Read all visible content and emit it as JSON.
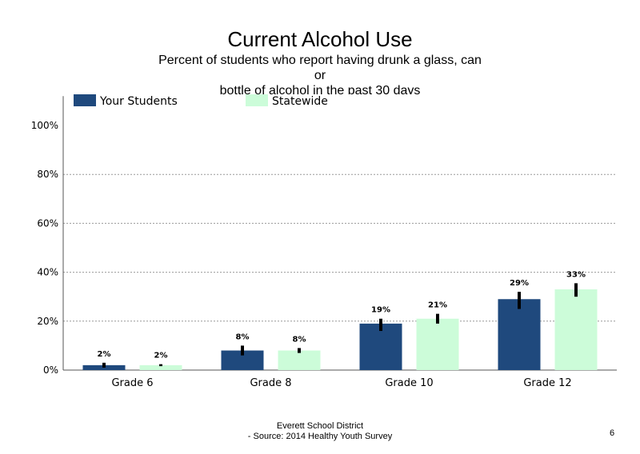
{
  "header": {
    "title": "Current Alcohol Use",
    "subtitle_lines": [
      "Percent of students who report having drunk a glass, can",
      "or",
      "bottle of alcohol in the past 30 days"
    ]
  },
  "footer": {
    "line1": "Everett School District",
    "line2": "- Source: 2014 Healthy Youth Survey",
    "page_number": "6"
  },
  "colors": {
    "your_students": "#1f497d",
    "statewide": "#ccfcd9",
    "error_bar": "#000000",
    "grid": "#999999"
  },
  "chart_data": {
    "type": "bar",
    "title": "Current Alcohol Use",
    "categories": [
      "Grade 6",
      "Grade 8",
      "Grade 10",
      "Grade 12"
    ],
    "series": [
      {
        "name": "Your Students",
        "values": [
          2,
          8,
          19,
          29
        ],
        "labels": [
          "2%",
          "8%",
          "19%",
          "29%"
        ],
        "error_low": [
          1,
          6,
          16,
          25
        ],
        "error_high": [
          3,
          10,
          21,
          32
        ]
      },
      {
        "name": "Statewide",
        "values": [
          2,
          8,
          21,
          33
        ],
        "labels": [
          "2%",
          "8%",
          "21%",
          "33%"
        ],
        "error_low": [
          1.6,
          7,
          19,
          30
        ],
        "error_high": [
          2.4,
          9,
          23,
          35.5
        ]
      }
    ],
    "yticks": [
      "0%",
      "20%",
      "40%",
      "60%",
      "80%",
      "100%"
    ],
    "ytick_values": [
      0,
      20,
      40,
      60,
      80,
      100
    ],
    "ylim": [
      0,
      112
    ],
    "grid": true,
    "legend": "top-left"
  }
}
